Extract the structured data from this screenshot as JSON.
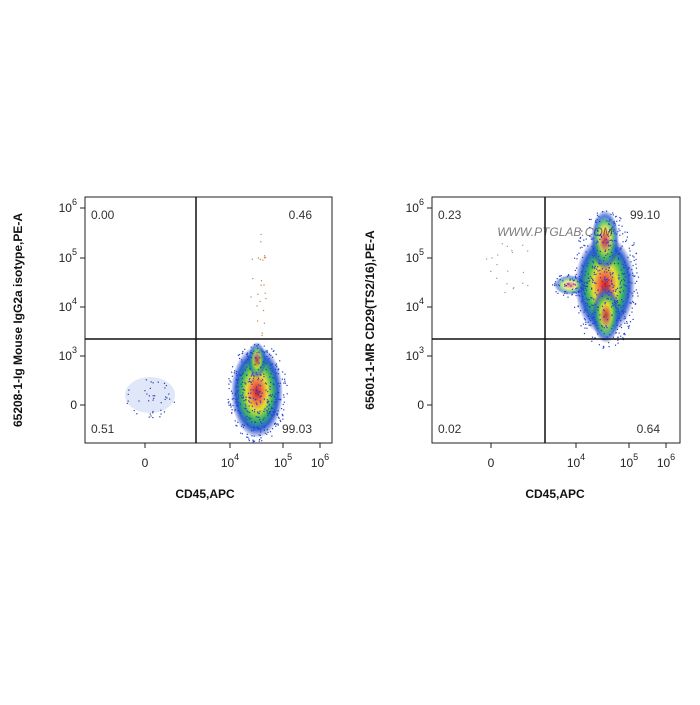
{
  "plots": [
    {
      "y_label": "65208-1-Ig Mouse IgG2a isotype,PE-A",
      "x_label": "CD45,APC",
      "quadrants": {
        "upper_left": "0.00",
        "upper_right": "0.46",
        "lower_left": "0.51",
        "lower_right": "99.03"
      }
    },
    {
      "y_label": "65601-1-MR CD29(TS2/16),PE-A",
      "x_label": "CD45,APC",
      "quadrants": {
        "upper_left": "0.23",
        "upper_right": "99.10",
        "lower_left": "0.02",
        "lower_right": "0.64"
      }
    }
  ],
  "y_ticks": [
    {
      "base": "10",
      "power": "6"
    },
    {
      "base": "10",
      "power": "5"
    },
    {
      "base": "10",
      "power": "4"
    },
    {
      "base": "10",
      "power": "3"
    },
    {
      "base": "0"
    }
  ],
  "x_ticks": [
    {
      "base": "0"
    },
    {
      "base": "10",
      "power": "4"
    },
    {
      "base": "10",
      "power": "5"
    },
    {
      "base": "10",
      "power": "6"
    }
  ],
  "watermark": "WWW.PTGLAB.COM"
}
